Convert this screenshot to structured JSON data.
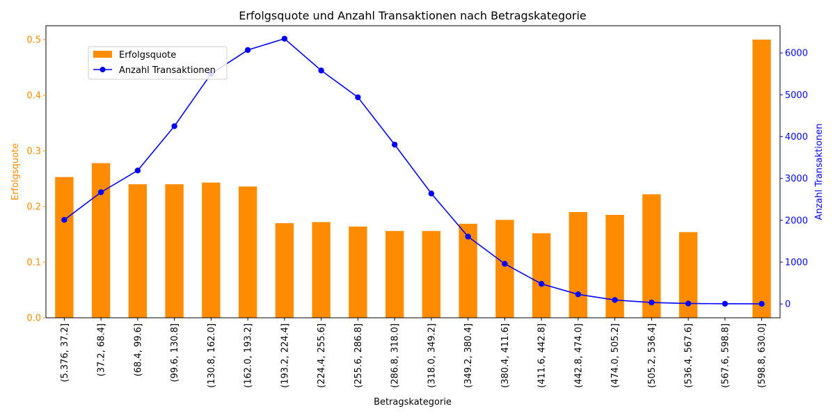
{
  "chart_data": {
    "type": "bar",
    "title": "Erfolgsquote und Anzahl Transaktionen nach Betragskategorie",
    "xlabel": "Betragskategorie",
    "ylabel": "Erfolgsquote",
    "ylabel_right": "Anzahl Transaktionen",
    "categories": [
      "(5.376, 37.2]",
      "(37.2, 68.4]",
      "(68.4, 99.6]",
      "(99.6, 130.8]",
      "(130.8, 162.0]",
      "(162.0, 193.2]",
      "(193.2, 224.4]",
      "(224.4, 255.6]",
      "(255.6, 286.8]",
      "(286.8, 318.0]",
      "(318.0, 349.2]",
      "(349.2, 380.4]",
      "(380.4, 411.6]",
      "(411.6, 442.8]",
      "(442.8, 474.0]",
      "(474.0, 505.2]",
      "(505.2, 536.4]",
      "(536.4, 567.6]",
      "(567.6, 598.8]",
      "(598.8, 630.0]"
    ],
    "series": [
      {
        "name": "Erfolgsquote",
        "type": "bar",
        "axis": "left",
        "color": "#ff8c00",
        "values": [
          0.253,
          0.278,
          0.24,
          0.24,
          0.243,
          0.236,
          0.17,
          0.172,
          0.164,
          0.156,
          0.156,
          0.169,
          0.176,
          0.152,
          0.19,
          0.185,
          0.222,
          0.154,
          0.0,
          0.5
        ]
      },
      {
        "name": "Anzahl Transaktionen",
        "type": "line",
        "axis": "right",
        "color": "#0000ff",
        "values": [
          2010,
          2670,
          3190,
          4250,
          5500,
          6070,
          6340,
          5580,
          4940,
          3810,
          2640,
          1610,
          960,
          480,
          230,
          95,
          35,
          12,
          5,
          3
        ]
      }
    ],
    "ylim": [
      0,
      0.525
    ],
    "ylim_right": [
      -330,
      6650
    ],
    "yticks": [
      "0.0",
      "0.1",
      "0.2",
      "0.3",
      "0.4",
      "0.5"
    ],
    "yticks_right": [
      "0",
      "1000",
      "2000",
      "3000",
      "4000",
      "5000",
      "6000"
    ],
    "left_axis_color": "#ff8c00",
    "right_axis_color": "#0000ff",
    "grid": false,
    "legend_position": "upper-left"
  }
}
